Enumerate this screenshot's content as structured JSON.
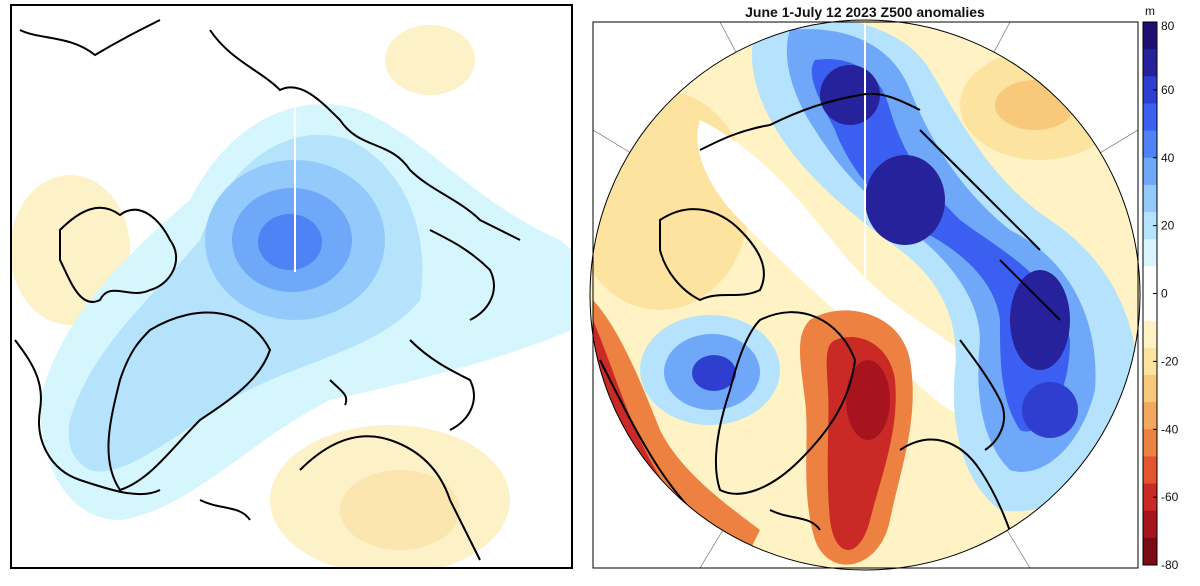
{
  "right_panel": {
    "title": "June 1-July 12 2023 Z500 anomalies"
  },
  "colorbar": {
    "unit": "m",
    "ticks": [
      "80",
      "60",
      "40",
      "20",
      "0",
      "-20",
      "-40",
      "-60",
      "-80"
    ],
    "tick_values": [
      80,
      60,
      40,
      20,
      0,
      -20,
      -40,
      -60,
      -80
    ],
    "range": [
      -80,
      80
    ],
    "colors": [
      "#1e0f73",
      "#26229c",
      "#2e3fcf",
      "#3b5ff0",
      "#4f82f5",
      "#6fa7f9",
      "#93c9fb",
      "#b5e2fd",
      "#d8f4fe",
      "#ffffff",
      "#ffffff",
      "#fff2c4",
      "#fde3a0",
      "#f8c97a",
      "#f2a95e",
      "#ec8142",
      "#e25530",
      "#c92a25",
      "#a8141d",
      "#7a0a14"
    ]
  },
  "colors": {
    "coast": "#000000",
    "left_blue_outer": "#d6f6fd",
    "left_blue_mid": "#b4e3fb",
    "left_blue_inner": "#7db9f3",
    "left_blue_core": "#4f82f5",
    "left_yellow": "#fdf1c8"
  }
}
